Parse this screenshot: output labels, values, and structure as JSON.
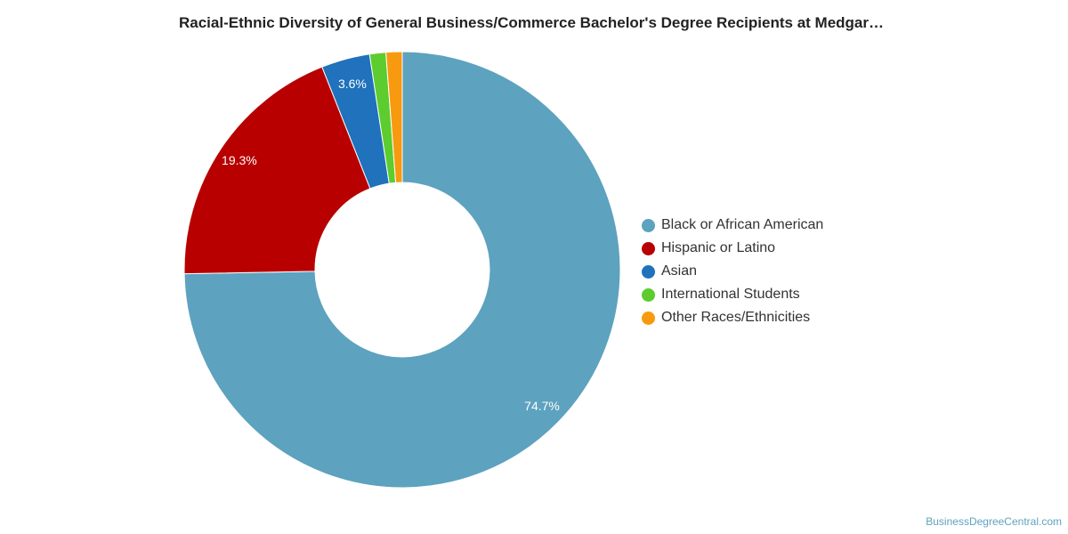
{
  "chart_data": {
    "type": "pie",
    "variant": "donut",
    "title": "Racial-Ethnic Diversity of General Business/Commerce Bachelor's Degree Recipients at Medgar…",
    "categories": [
      "Black or African American",
      "Hispanic or Latino",
      "Asian",
      "International Students",
      "Other Races/Ethnicities"
    ],
    "values": [
      74.7,
      19.3,
      3.6,
      1.2,
      1.2
    ],
    "data_labels": [
      "74.7%",
      "19.3%",
      "3.6%",
      "",
      ""
    ],
    "colors": [
      "#5da2bf",
      "#b80000",
      "#1f72bb",
      "#5ccc2e",
      "#f79a0f"
    ],
    "legend_position": "right"
  },
  "footer": {
    "credit": "BusinessDegreeCentral.com"
  }
}
